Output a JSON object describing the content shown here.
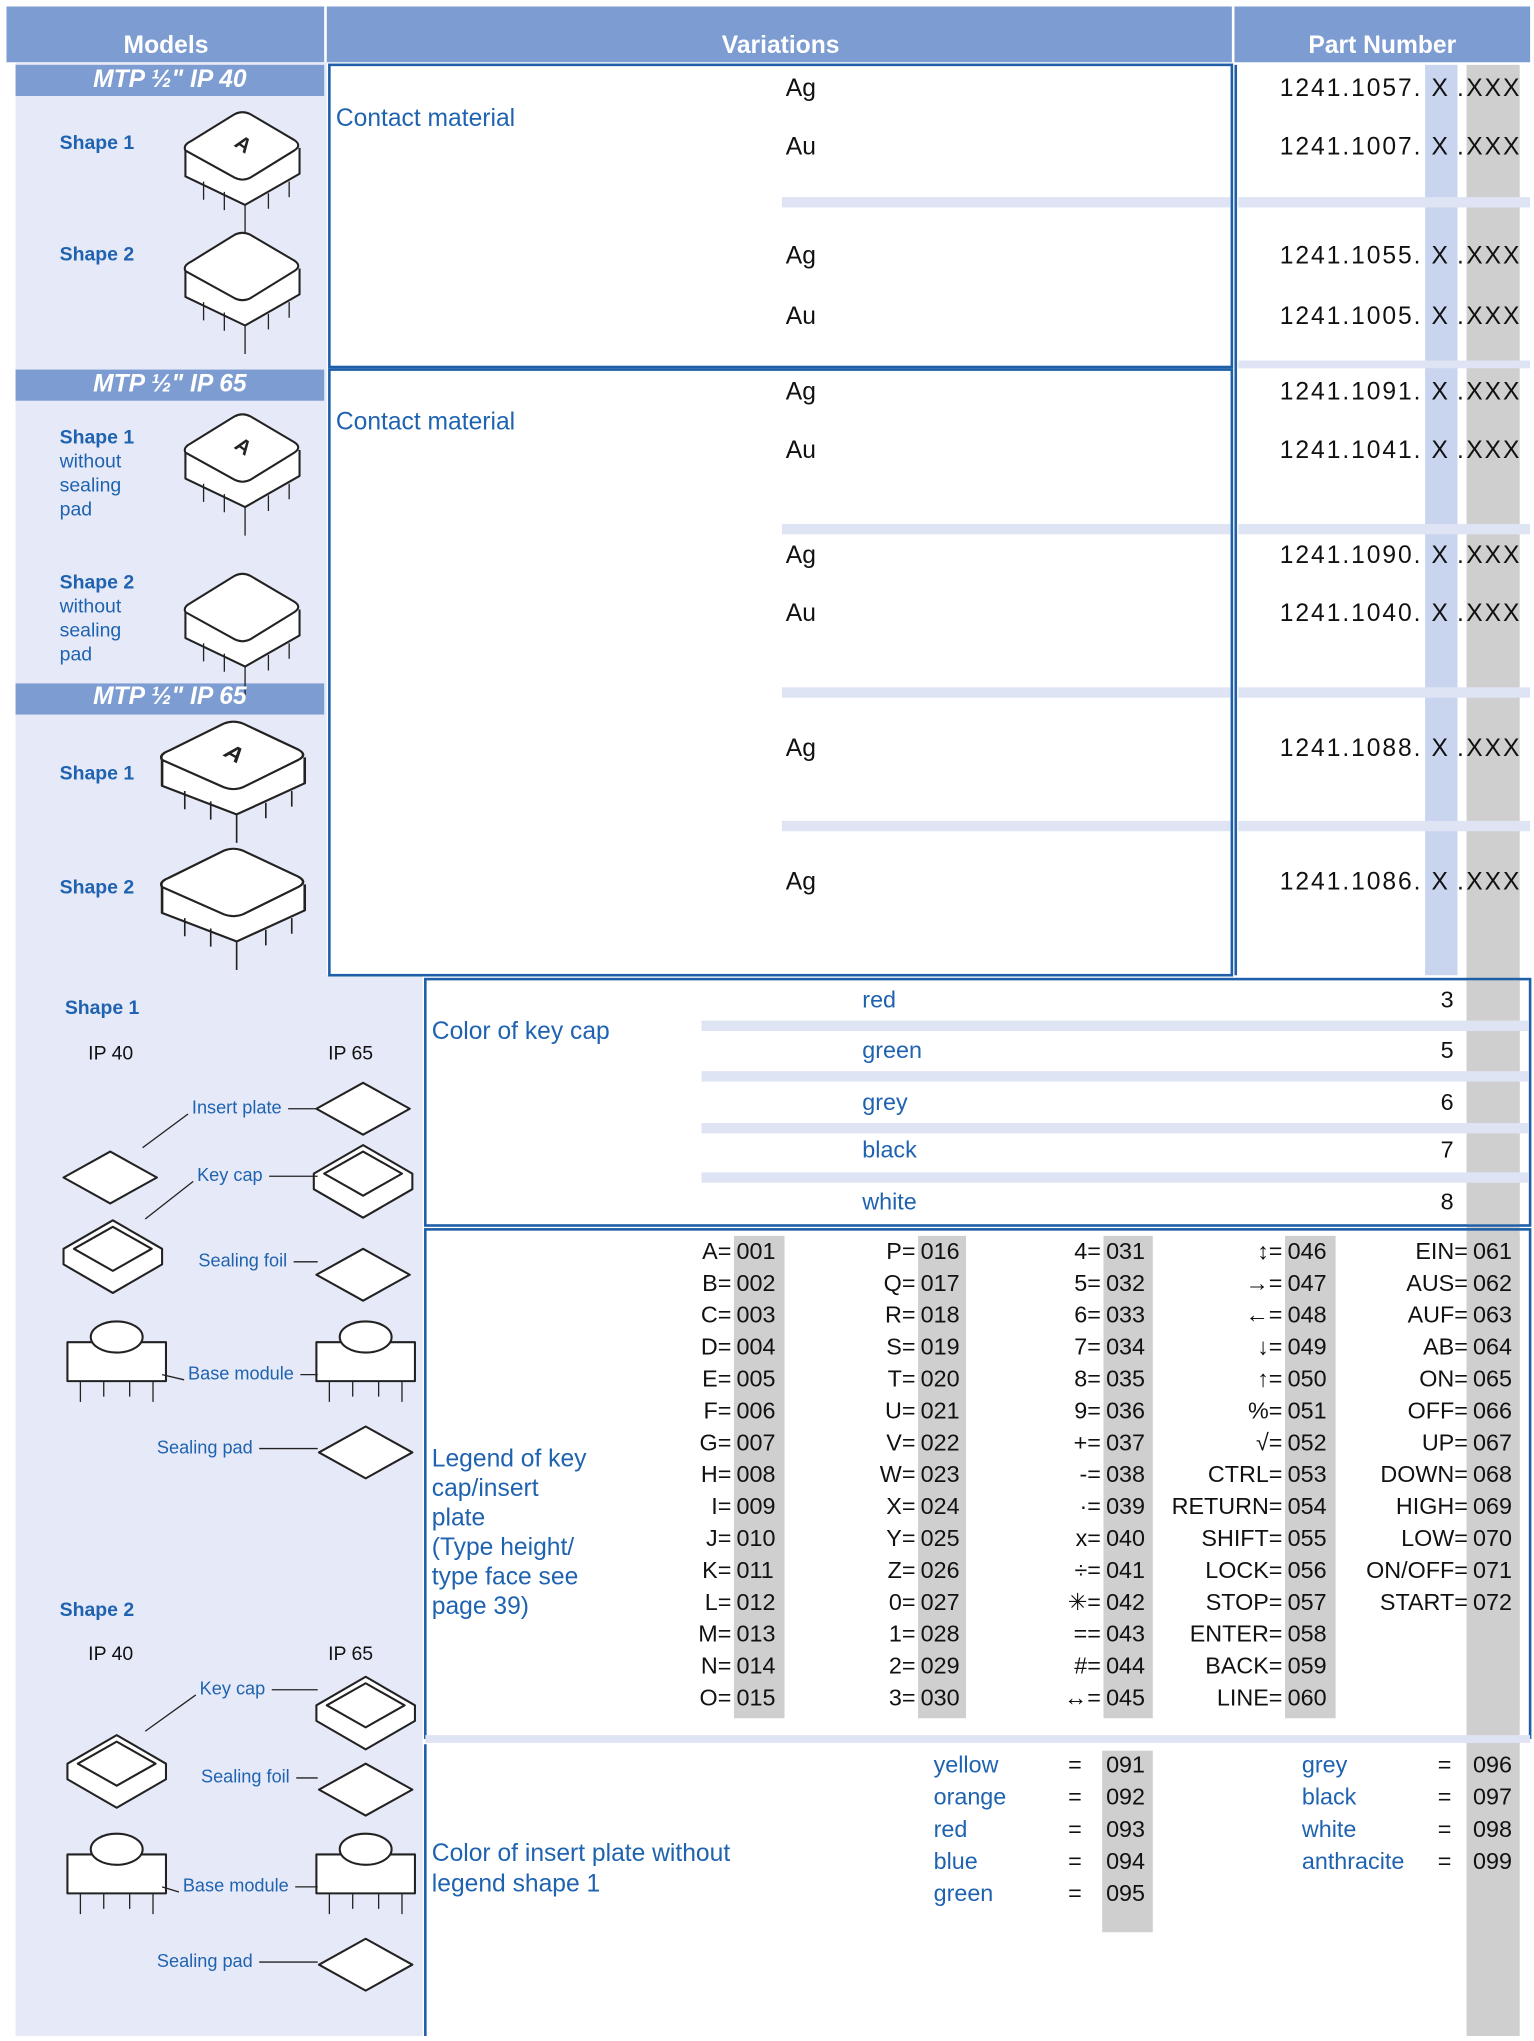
{
  "header": {
    "models": "Models",
    "variations": "Variations",
    "part_number": "Part Number"
  },
  "part_code": {
    "x": "X",
    "dot": ".",
    "xxx": "XXX"
  },
  "models": [
    {
      "title": "MTP ½\" IP 40",
      "variation_label": "Contact material",
      "shapes": [
        {
          "label": "Shape 1",
          "rows": [
            {
              "variation": "Ag",
              "part": "1241.1057."
            },
            {
              "variation": "Au",
              "part": "1241.1007."
            }
          ]
        },
        {
          "label": "Shape 2",
          "rows": [
            {
              "variation": "Ag",
              "part": "1241.1055."
            },
            {
              "variation": "Au",
              "part": "1241.1005."
            }
          ]
        }
      ]
    },
    {
      "title": "MTP ½\" IP 65",
      "variation_label": "Contact material",
      "shapes": [
        {
          "label": "Shape 1",
          "note": [
            "without",
            "sealing",
            "pad"
          ],
          "rows": [
            {
              "variation": "Ag",
              "part": "1241.1091."
            },
            {
              "variation": "Au",
              "part": "1241.1041."
            }
          ]
        },
        {
          "label": "Shape 2",
          "note": [
            "without",
            "sealing",
            "pad"
          ],
          "rows": [
            {
              "variation": "Ag",
              "part": "1241.1090."
            },
            {
              "variation": "Au",
              "part": "1241.1040."
            }
          ]
        }
      ]
    },
    {
      "title": "MTP ½\" IP 65",
      "shapes": [
        {
          "label": "Shape 1",
          "rows": [
            {
              "variation": "Ag",
              "part": "1241.1088."
            }
          ]
        },
        {
          "label": "Shape 2",
          "rows": [
            {
              "variation": "Ag",
              "part": "1241.1086."
            }
          ]
        }
      ]
    }
  ],
  "key_cap_color": {
    "label": "Color of key cap",
    "options": [
      {
        "name": "red",
        "code": "3"
      },
      {
        "name": "green",
        "code": "5"
      },
      {
        "name": "grey",
        "code": "6"
      },
      {
        "name": "black",
        "code": "7"
      },
      {
        "name": "white",
        "code": "8"
      }
    ]
  },
  "legend": {
    "label": [
      "Legend of key",
      "cap/insert",
      "plate",
      "(Type height/",
      "type face see",
      "page 39)"
    ],
    "columns": [
      [
        {
          "key": "A=",
          "code": "001"
        },
        {
          "key": "B=",
          "code": "002"
        },
        {
          "key": "C=",
          "code": "003"
        },
        {
          "key": "D=",
          "code": "004"
        },
        {
          "key": "E=",
          "code": "005"
        },
        {
          "key": "F=",
          "code": "006"
        },
        {
          "key": "G=",
          "code": "007"
        },
        {
          "key": "H=",
          "code": "008"
        },
        {
          "key": "I=",
          "code": "009"
        },
        {
          "key": "J=",
          "code": "010"
        },
        {
          "key": "K=",
          "code": "011"
        },
        {
          "key": "L=",
          "code": "012"
        },
        {
          "key": "M=",
          "code": "013"
        },
        {
          "key": "N=",
          "code": "014"
        },
        {
          "key": "O=",
          "code": "015"
        }
      ],
      [
        {
          "key": "P=",
          "code": "016"
        },
        {
          "key": "Q=",
          "code": "017"
        },
        {
          "key": "R=",
          "code": "018"
        },
        {
          "key": "S=",
          "code": "019"
        },
        {
          "key": "T=",
          "code": "020"
        },
        {
          "key": "U=",
          "code": "021"
        },
        {
          "key": "V=",
          "code": "022"
        },
        {
          "key": "W=",
          "code": "023"
        },
        {
          "key": "X=",
          "code": "024"
        },
        {
          "key": "Y=",
          "code": "025"
        },
        {
          "key": "Z=",
          "code": "026"
        },
        {
          "key": "0=",
          "code": "027"
        },
        {
          "key": "1=",
          "code": "028"
        },
        {
          "key": "2=",
          "code": "029"
        },
        {
          "key": "3=",
          "code": "030"
        }
      ],
      [
        {
          "key": "4=",
          "code": "031"
        },
        {
          "key": "5=",
          "code": "032"
        },
        {
          "key": "6=",
          "code": "033"
        },
        {
          "key": "7=",
          "code": "034"
        },
        {
          "key": "8=",
          "code": "035"
        },
        {
          "key": "9=",
          "code": "036"
        },
        {
          "key": "+=",
          "code": "037"
        },
        {
          "key": "-=",
          "code": "038"
        },
        {
          "key": "·=",
          "code": "039"
        },
        {
          "key": "x=",
          "code": "040"
        },
        {
          "key": "÷=",
          "code": "041"
        },
        {
          "key": "✳=",
          "code": "042"
        },
        {
          "key": "==",
          "code": "043"
        },
        {
          "key": "#=",
          "code": "044"
        },
        {
          "key": "↔=",
          "code": "045"
        }
      ],
      [
        {
          "key": "↕=",
          "code": "046"
        },
        {
          "key": "→=",
          "code": "047"
        },
        {
          "key": "←=",
          "code": "048"
        },
        {
          "key": "↓=",
          "code": "049"
        },
        {
          "key": "↑=",
          "code": "050"
        },
        {
          "key": "%=",
          "code": "051"
        },
        {
          "key": "√=",
          "code": "052"
        },
        {
          "key": "CTRL=",
          "code": "053"
        },
        {
          "key": "RETURN=",
          "code": "054"
        },
        {
          "key": "SHIFT=",
          "code": "055"
        },
        {
          "key": "LOCK=",
          "code": "056"
        },
        {
          "key": "STOP=",
          "code": "057"
        },
        {
          "key": "ENTER=",
          "code": "058"
        },
        {
          "key": "BACK=",
          "code": "059"
        },
        {
          "key": "LINE=",
          "code": "060"
        }
      ],
      [
        {
          "key": "EIN=",
          "code": "061"
        },
        {
          "key": "AUS=",
          "code": "062"
        },
        {
          "key": "AUF=",
          "code": "063"
        },
        {
          "key": "AB=",
          "code": "064"
        },
        {
          "key": "ON=",
          "code": "065"
        },
        {
          "key": "OFF=",
          "code": "066"
        },
        {
          "key": "UP=",
          "code": "067"
        },
        {
          "key": "DOWN=",
          "code": "068"
        },
        {
          "key": "HIGH=",
          "code": "069"
        },
        {
          "key": "LOW=",
          "code": "070"
        },
        {
          "key": "ON/OFF=",
          "code": "071"
        },
        {
          "key": "START=",
          "code": "072"
        }
      ]
    ]
  },
  "insert_plate_color": {
    "label": [
      "Color of insert plate without",
      "legend shape 1"
    ],
    "equals": "=",
    "columns": [
      [
        {
          "name": "yellow",
          "code": "091"
        },
        {
          "name": "orange",
          "code": "092"
        },
        {
          "name": "red",
          "code": "093"
        },
        {
          "name": "blue",
          "code": "094"
        },
        {
          "name": "green",
          "code": "095"
        }
      ],
      [
        {
          "name": "grey",
          "code": "096"
        },
        {
          "name": "black",
          "code": "097"
        },
        {
          "name": "white",
          "code": "098"
        },
        {
          "name": "anthracite",
          "code": "099"
        }
      ]
    ]
  },
  "exploded_views": [
    {
      "title": "Shape 1",
      "ip40": "IP 40",
      "ip65": "IP 65",
      "parts": [
        "Insert plate",
        "Key cap",
        "Sealing foil",
        "Base module",
        "Sealing pad"
      ]
    },
    {
      "title": "Shape 2",
      "ip40": "IP 40",
      "ip65": "IP 65",
      "parts": [
        "Key cap",
        "Sealing foil",
        "Base module",
        "Sealing pad"
      ]
    }
  ]
}
